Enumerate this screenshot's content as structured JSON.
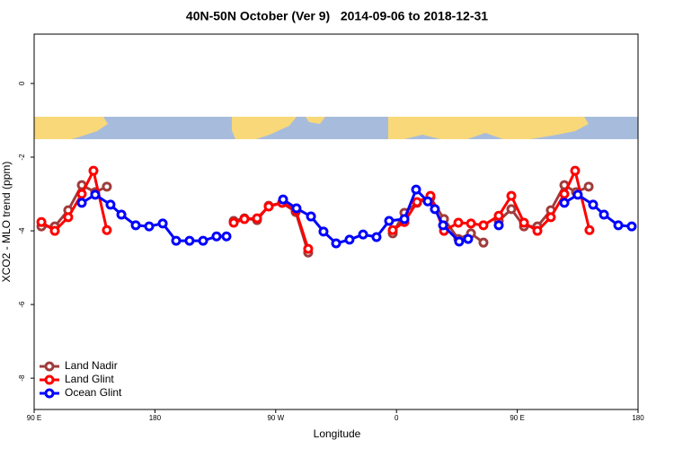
{
  "chart_data": {
    "type": "line",
    "title": "40N-50N October (Ver 9)   2014-09-06 to 2018-12-31",
    "x_label": "Longitude",
    "y_label": "XCO2 - MLO trend (ppm)",
    "xlim": [
      90,
      540
    ],
    "ylim": [
      -8.85,
      1.34
    ],
    "xticks": [
      {
        "value": 90,
        "label": "90 E"
      },
      180,
      {
        "value": 270,
        "label": "90 W"
      },
      {
        "value": 360,
        "label": "0"
      },
      {
        "value": 450,
        "label": "90 E"
      },
      {
        "value": 540,
        "label": "180"
      }
    ],
    "yticks": [
      0,
      -2,
      -4,
      -6,
      -8
    ],
    "legend": "bottom-left",
    "series": [
      {
        "name": "Land Nadir",
        "color": "#a03c3c",
        "x": [
          95.4,
          105.4,
          115.4,
          125.5,
          135.5,
          144.2,
          null,
          238.7,
          246.7,
          256.1,
          264.8,
          274.8,
          284.9,
          294.2,
          null,
          357.2,
          365.9,
          375.3,
          385.3,
          395.4,
          406.1,
          415.5,
          424.8,
          null,
          436.2,
          445.6,
          455.0,
          465.0,
          475.0,
          485.1,
          493.8,
          503.2
        ],
        "values": [
          -3.88,
          -3.88,
          -3.44,
          -2.76,
          -2.95,
          -2.8,
          null,
          -3.73,
          -3.66,
          -3.71,
          -3.32,
          -3.24,
          -3.49,
          -4.59,
          null,
          -4.07,
          -3.51,
          -3.24,
          -3.1,
          -3.68,
          -4.22,
          -4.07,
          -4.32,
          null,
          -3.73,
          -3.41,
          -3.88,
          -3.88,
          -3.44,
          -2.76,
          -2.95,
          -2.8
        ]
      },
      {
        "name": "Land Glint",
        "color": "#ff0000",
        "x": [
          95.4,
          105.4,
          115.4,
          125.5,
          134.2,
          144.2,
          null,
          238.7,
          246.7,
          256.1,
          264.8,
          274.8,
          284.9,
          294.2,
          null,
          357.2,
          365.9,
          375.3,
          385.3,
          395.4,
          406.1,
          415.5,
          424.8,
          436.2,
          445.6,
          455.0,
          465.0,
          475.0,
          485.1,
          493.1,
          503.8
        ],
        "values": [
          -3.76,
          -4.0,
          -3.63,
          -3.0,
          -2.37,
          -3.98,
          null,
          -3.78,
          -3.68,
          -3.66,
          -3.34,
          -3.24,
          -3.44,
          -4.49,
          null,
          -3.98,
          -3.76,
          -3.22,
          -3.05,
          -4.0,
          -3.78,
          -3.8,
          -3.85,
          -3.59,
          -3.05,
          -3.78,
          -4.0,
          -3.63,
          -3.0,
          -2.37,
          -3.98
        ]
      },
      {
        "name": "Ocean Glint",
        "color": "#0000ff",
        "x": [
          125.5,
          135.5,
          146.9,
          155.0,
          165.7,
          175.7,
          185.8,
          195.8,
          205.8,
          215.9,
          225.9,
          233.3,
          null,
          275.5,
          285.5,
          296.3,
          305.6,
          315.0,
          325.0,
          335.1,
          345.1,
          354.5,
          365.9,
          374.6,
          383.3,
          388.6,
          394.7,
          406.7,
          413.4,
          null,
          436.2,
          null,
          485.1,
          495.1,
          506.5,
          514.6,
          525.3,
          535.3
        ],
        "values": [
          -3.24,
          -3.02,
          -3.29,
          -3.56,
          -3.85,
          -3.88,
          -3.8,
          -4.27,
          -4.27,
          -4.27,
          -4.15,
          -4.15,
          null,
          -3.15,
          -3.39,
          -3.61,
          -4.02,
          -4.34,
          -4.24,
          -4.1,
          -4.17,
          -3.73,
          -3.68,
          -2.88,
          -3.2,
          -3.41,
          -3.85,
          -4.29,
          -4.22,
          null,
          -3.85,
          null,
          -3.24,
          -3.02,
          -3.29,
          -3.56,
          -3.85,
          -3.88
        ]
      }
    ]
  }
}
